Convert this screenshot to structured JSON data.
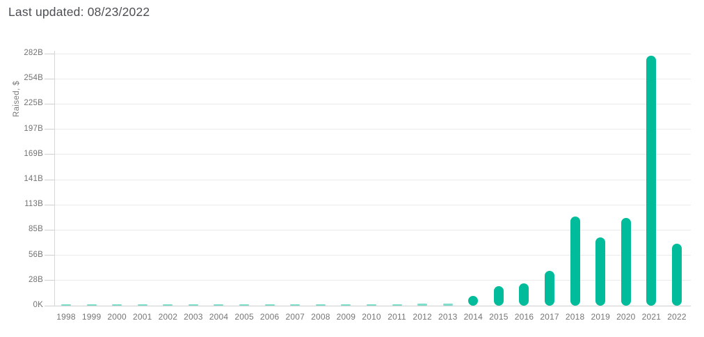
{
  "header": {
    "title": "Last updated: 08/23/2022"
  },
  "chart_data": {
    "type": "bar",
    "title": "Last updated: 08/23/2022",
    "xlabel": "",
    "ylabel": "Raised, $",
    "categories": [
      "1998",
      "1999",
      "2000",
      "2001",
      "2002",
      "2003",
      "2004",
      "2005",
      "2006",
      "2007",
      "2008",
      "2009",
      "2010",
      "2011",
      "2012",
      "2013",
      "2014",
      "2015",
      "2016",
      "2017",
      "2018",
      "2019",
      "2020",
      "2021",
      "2022"
    ],
    "values": [
      0.1,
      0.1,
      0.1,
      0.1,
      0.1,
      0.1,
      0.1,
      0.1,
      0.1,
      0.1,
      0.1,
      0.1,
      0.2,
      1,
      2,
      2,
      11,
      22,
      25,
      39,
      100,
      76,
      98,
      280,
      69
    ],
    "value_unit": "billion USD",
    "ylim": [
      0,
      282
    ],
    "yticks": [
      "0K",
      "28B",
      "56B",
      "85B",
      "113B",
      "141B",
      "169B",
      "197B",
      "225B",
      "254B",
      "282B"
    ],
    "grid": true,
    "legend": null,
    "colors": {
      "bar": "#00BC9A",
      "grid": "#eaeaea",
      "axis": "#cfcfcf",
      "tick_label": "#737373",
      "title": "#4b4e53"
    }
  }
}
